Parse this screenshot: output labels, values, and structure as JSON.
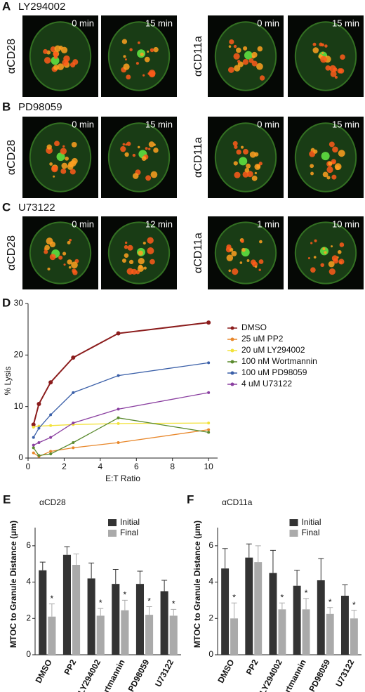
{
  "panels": [
    {
      "label": "A",
      "treatment": "LY294002",
      "groups": [
        {
          "antibody": "αCD28",
          "times": [
            "0 min",
            "15 min"
          ]
        },
        {
          "antibody": "αCD11a",
          "times": [
            "0 min",
            "15 min"
          ]
        }
      ]
    },
    {
      "label": "B",
      "treatment": "PD98059",
      "groups": [
        {
          "antibody": "αCD28",
          "times": [
            "0 min",
            "15 min"
          ]
        },
        {
          "antibody": "αCD11a",
          "times": [
            "0 min",
            "15 min"
          ]
        }
      ]
    },
    {
      "label": "C",
      "treatment": "U73122",
      "groups": [
        {
          "antibody": "αCD28",
          "times": [
            "0 min",
            "12 min"
          ]
        },
        {
          "antibody": "αCD11a",
          "times": [
            "1 min",
            "10 min"
          ]
        }
      ]
    }
  ],
  "chart_data": [
    {
      "type": "line",
      "panel": "D",
      "x_label": "E:T Ratio",
      "y_label": "% Lysis",
      "x": [
        0.3,
        0.6,
        1.25,
        2.5,
        5,
        10
      ],
      "xlim": [
        0,
        10.5
      ],
      "xticks": [
        0,
        2,
        4,
        6,
        8,
        10
      ],
      "ylim": [
        0,
        30
      ],
      "yticks": [
        0,
        10,
        20,
        30
      ],
      "legend": "right",
      "series": [
        {
          "name": "DMSO",
          "color": "#8b1c1c",
          "values": [
            6.5,
            10.5,
            14.7,
            19.5,
            24.2,
            26.3
          ]
        },
        {
          "name": "25 uM PP2",
          "color": "#e8872a",
          "values": [
            1.0,
            0.3,
            1.3,
            2.0,
            3.0,
            5.5
          ]
        },
        {
          "name": "20 uM LY294002",
          "color": "#f2e23a",
          "values": [
            6.0,
            6.2,
            6.3,
            6.5,
            6.7,
            6.8
          ]
        },
        {
          "name": "100 nM Wortmannin",
          "color": "#5a8a2e",
          "values": [
            2.0,
            0.5,
            0.8,
            3.0,
            7.8,
            5.0
          ]
        },
        {
          "name": "100 uM PD98059",
          "color": "#3a5fa8",
          "values": [
            4.0,
            5.8,
            8.4,
            12.7,
            16.0,
            18.5
          ]
        },
        {
          "name": "4 uM U73122",
          "color": "#8a3fa0",
          "values": [
            2.5,
            3.0,
            4.0,
            6.8,
            9.5,
            12.7
          ]
        }
      ]
    },
    {
      "type": "bar",
      "panel": "E",
      "title": "αCD28",
      "y_label": "MTOC to Granule Distance (μm)",
      "categories": [
        "DMSO",
        "PP2",
        "LY294002",
        "Wortmannin",
        "PD98059",
        "U73122"
      ],
      "ylim": [
        0,
        7
      ],
      "yticks": [
        0,
        2,
        4,
        6
      ],
      "series": [
        {
          "name": "Initial",
          "color": "#333333",
          "values": [
            4.65,
            5.5,
            4.2,
            3.9,
            3.9,
            3.5
          ],
          "errors": [
            0.45,
            0.45,
            0.85,
            0.8,
            0.7,
            0.6
          ]
        },
        {
          "name": "Final",
          "color": "#aaaaaa",
          "values": [
            2.1,
            4.95,
            2.15,
            2.45,
            2.2,
            2.15
          ],
          "errors": [
            0.7,
            0.6,
            0.4,
            0.55,
            0.45,
            0.35
          ],
          "markers": [
            "*",
            null,
            "*",
            "*",
            "*",
            "*"
          ]
        }
      ]
    },
    {
      "type": "bar",
      "panel": "F",
      "title": "αCD11a",
      "y_label": "MTOC to Granule Distance (μm)",
      "categories": [
        "DMSO",
        "PP2",
        "LY294002",
        "Wortmannin",
        "PD98059",
        "U73122"
      ],
      "ylim": [
        0,
        7
      ],
      "yticks": [
        0,
        2,
        4,
        6
      ],
      "series": [
        {
          "name": "Initial",
          "color": "#333333",
          "values": [
            4.75,
            5.35,
            4.5,
            3.8,
            4.1,
            3.25
          ],
          "errors": [
            1.1,
            0.75,
            1.25,
            0.85,
            1.2,
            0.6
          ]
        },
        {
          "name": "Final",
          "color": "#aaaaaa",
          "values": [
            2.0,
            5.1,
            2.5,
            2.5,
            2.25,
            2.0
          ],
          "errors": [
            0.85,
            0.9,
            0.35,
            0.6,
            0.35,
            0.45
          ],
          "markers": [
            "*",
            null,
            "*",
            "*",
            "*",
            "*"
          ]
        }
      ]
    }
  ]
}
